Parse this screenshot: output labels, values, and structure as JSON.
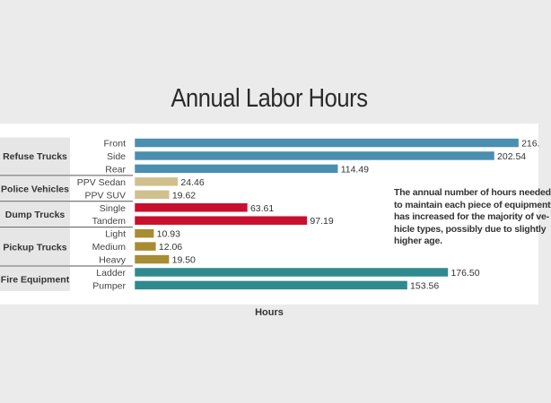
{
  "chart_data": {
    "type": "bar",
    "orientation": "horizontal",
    "title": "Annual Labor Hours",
    "xlabel": "Hours",
    "ylabel": "",
    "grid": false,
    "xlim": [
      0,
      228
    ],
    "groups": [
      {
        "name": "Refuse Trucks",
        "color": "#4a8fb0",
        "items": [
          {
            "label": "Front",
            "value": 216.2,
            "value_label": "216."
          },
          {
            "label": "Side",
            "value": 202.54,
            "value_label": "202.54"
          },
          {
            "label": "Rear",
            "value": 114.49,
            "value_label": "114.49"
          }
        ]
      },
      {
        "name": "Police Vehicles",
        "color": "#cfc08e",
        "items": [
          {
            "label": "PPV Sedan",
            "value": 24.46,
            "value_label": "24.46"
          },
          {
            "label": "PPV SUV",
            "value": 19.62,
            "value_label": "19.62"
          }
        ]
      },
      {
        "name": "Dump Trucks",
        "color": "#c8102e",
        "items": [
          {
            "label": "Single",
            "value": 63.61,
            "value_label": "63.61"
          },
          {
            "label": "Tandem",
            "value": 97.19,
            "value_label": "97.19"
          }
        ]
      },
      {
        "name": "Pickup Trucks",
        "color": "#a88c33",
        "items": [
          {
            "label": "Light",
            "value": 10.93,
            "value_label": "10.93"
          },
          {
            "label": "Medium",
            "value": 12.06,
            "value_label": "12.06"
          },
          {
            "label": "Heavy",
            "value": 19.5,
            "value_label": "19.50"
          }
        ]
      },
      {
        "name": "Fire Equipment",
        "color": "#2f8a8f",
        "items": [
          {
            "label": "Ladder",
            "value": 176.5,
            "value_label": "176.50"
          },
          {
            "label": "Pumper",
            "value": 153.56,
            "value_label": "153.56"
          }
        ]
      }
    ],
    "annotation": [
      "The annual number of hours needed",
      "to maintain each piece of equipment",
      "has increased for the majority of ve-",
      "hicle types, possibly due to slightly",
      "higher age."
    ]
  }
}
